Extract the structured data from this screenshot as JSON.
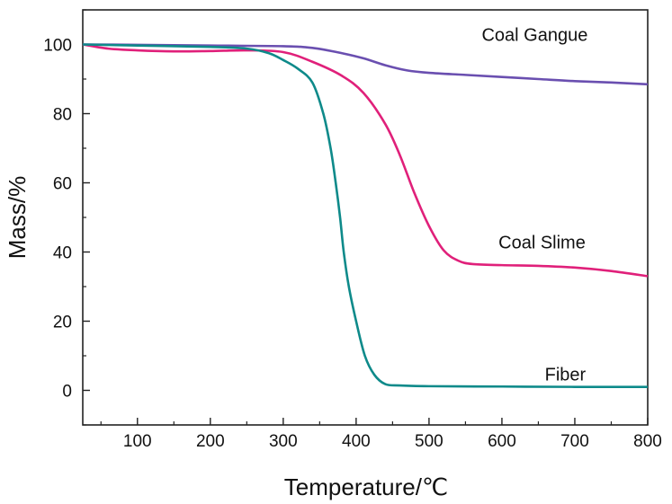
{
  "chart_data": {
    "type": "line",
    "title": "",
    "xlabel": "Temperature/℃",
    "ylabel": "Mass/%",
    "xlim": [
      25,
      800
    ],
    "ylim": [
      -10,
      110
    ],
    "x_ticks": [
      100,
      200,
      300,
      400,
      500,
      600,
      700,
      800
    ],
    "y_ticks": [
      0,
      20,
      40,
      60,
      80,
      100
    ],
    "grid": false,
    "legend": "inline labels",
    "series": [
      {
        "name": "Coal Gangue",
        "color": "#6a4fb0",
        "label_at": [
          645,
          101
        ],
        "points": [
          [
            25,
            100
          ],
          [
            100,
            99.9
          ],
          [
            200,
            99.7
          ],
          [
            300,
            99.5
          ],
          [
            340,
            99
          ],
          [
            380,
            97.5
          ],
          [
            410,
            96
          ],
          [
            440,
            94
          ],
          [
            470,
            92.5
          ],
          [
            500,
            91.8
          ],
          [
            550,
            91.2
          ],
          [
            600,
            90.6
          ],
          [
            650,
            90
          ],
          [
            700,
            89.4
          ],
          [
            750,
            89
          ],
          [
            800,
            88.5
          ]
        ]
      },
      {
        "name": "Coal Slime",
        "color": "#e0207a",
        "label_at": [
          655,
          41
        ],
        "points": [
          [
            25,
            100
          ],
          [
            60,
            98.8
          ],
          [
            100,
            98.3
          ],
          [
            150,
            98
          ],
          [
            200,
            98.1
          ],
          [
            250,
            98.3
          ],
          [
            300,
            97.8
          ],
          [
            340,
            95
          ],
          [
            380,
            91
          ],
          [
            410,
            86
          ],
          [
            440,
            77
          ],
          [
            460,
            68
          ],
          [
            480,
            57
          ],
          [
            500,
            47.5
          ],
          [
            520,
            40.5
          ],
          [
            540,
            37.5
          ],
          [
            560,
            36.5
          ],
          [
            600,
            36.2
          ],
          [
            650,
            36
          ],
          [
            700,
            35.5
          ],
          [
            750,
            34.5
          ],
          [
            800,
            33
          ]
        ]
      },
      {
        "name": "Fiber",
        "color": "#0e8a8a",
        "label_at": [
          687,
          2.8
        ],
        "points": [
          [
            25,
            100
          ],
          [
            100,
            99.7
          ],
          [
            200,
            99.3
          ],
          [
            250,
            98.8
          ],
          [
            280,
            97.5
          ],
          [
            300,
            95.5
          ],
          [
            320,
            93
          ],
          [
            340,
            89
          ],
          [
            355,
            80
          ],
          [
            365,
            70
          ],
          [
            372,
            60
          ],
          [
            378,
            50
          ],
          [
            383,
            40
          ],
          [
            390,
            30
          ],
          [
            400,
            20
          ],
          [
            412,
            10
          ],
          [
            425,
            4.5
          ],
          [
            440,
            1.8
          ],
          [
            460,
            1.4
          ],
          [
            500,
            1.2
          ],
          [
            600,
            1.1
          ],
          [
            700,
            1.0
          ],
          [
            800,
            1.0
          ]
        ]
      }
    ]
  }
}
